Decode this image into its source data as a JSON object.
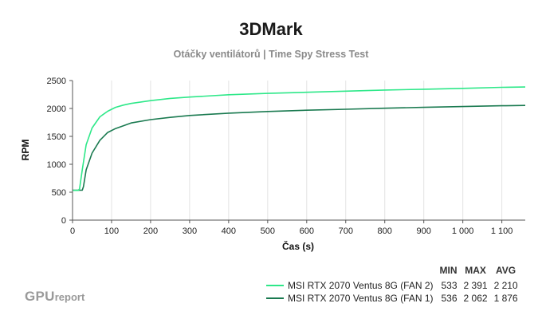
{
  "chart_data": {
    "type": "line",
    "title": "3DMark",
    "subtitle": "Otáčky ventilátorů | Time Spy Stress Test",
    "xlabel": "Čas (s)",
    "ylabel": "RPM",
    "xlim": [
      0,
      1160
    ],
    "ylim": [
      0,
      2500
    ],
    "xticks": [
      0,
      100,
      200,
      300,
      400,
      500,
      600,
      700,
      800,
      900,
      1000,
      1100
    ],
    "xtick_labels": [
      "0",
      "100",
      "200",
      "300",
      "400",
      "500",
      "600",
      "700",
      "800",
      "900",
      "1 000",
      "1 100"
    ],
    "yticks": [
      0,
      500,
      1000,
      1500,
      2000,
      2500
    ],
    "ytick_labels": [
      "0",
      "500",
      "1000",
      "1500",
      "2000",
      "2500"
    ],
    "grid": "vertical",
    "legend_position": "bottom-right",
    "legend_headers": [
      "MIN",
      "MAX",
      "AVG"
    ],
    "series": [
      {
        "name": "MSI RTX 2070 Ventus 8G (FAN 2)",
        "color": "#2ee889",
        "min": "533",
        "max": "2 391",
        "avg": "2 210",
        "x": [
          0,
          15,
          18,
          25,
          35,
          50,
          70,
          90,
          110,
          130,
          150,
          200,
          250,
          300,
          400,
          500,
          600,
          700,
          800,
          900,
          1000,
          1100,
          1160
        ],
        "y": [
          533,
          533,
          560,
          900,
          1350,
          1650,
          1850,
          1950,
          2020,
          2060,
          2090,
          2140,
          2180,
          2205,
          2245,
          2270,
          2290,
          2310,
          2330,
          2345,
          2360,
          2378,
          2385
        ]
      },
      {
        "name": "MSI RTX 2070 Ventus 8G (FAN 1)",
        "color": "#1a7a50",
        "min": "536",
        "max": "2 062",
        "avg": "1 876",
        "x": [
          0,
          25,
          28,
          35,
          50,
          70,
          90,
          110,
          130,
          150,
          200,
          250,
          300,
          400,
          500,
          600,
          700,
          800,
          900,
          1000,
          1100,
          1160
        ],
        "y": [
          536,
          536,
          600,
          900,
          1200,
          1430,
          1570,
          1640,
          1690,
          1740,
          1800,
          1840,
          1875,
          1915,
          1945,
          1968,
          1985,
          2005,
          2020,
          2035,
          2048,
          2055
        ]
      }
    ]
  },
  "logo": {
    "main": "GPU",
    "small": "report"
  }
}
